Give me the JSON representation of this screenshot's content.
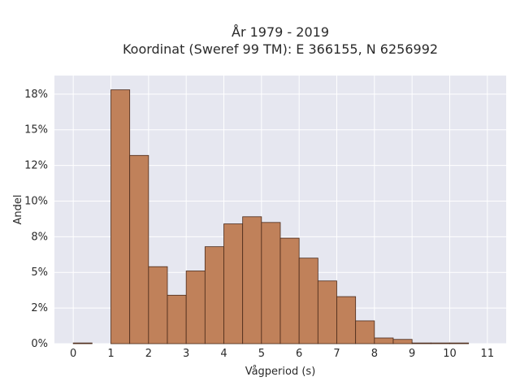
{
  "chart_data": {
    "type": "bar",
    "title_lines": [
      "År 1979 - 2019",
      "Koordinat (Sweref 99 TM): E 366155, N 6256992"
    ],
    "xlabel": "Vågperiod (s)",
    "ylabel": "Andel",
    "bin_width": 0.5,
    "bins": [
      {
        "x0": 0.0,
        "value": 0.05
      },
      {
        "x0": 0.5,
        "value": 0.0
      },
      {
        "x0": 1.0,
        "value": 17.8
      },
      {
        "x0": 1.5,
        "value": 13.2
      },
      {
        "x0": 2.0,
        "value": 5.4
      },
      {
        "x0": 2.5,
        "value": 3.4
      },
      {
        "x0": 3.0,
        "value": 5.1
      },
      {
        "x0": 3.5,
        "value": 6.8
      },
      {
        "x0": 4.0,
        "value": 8.4
      },
      {
        "x0": 4.5,
        "value": 8.9
      },
      {
        "x0": 5.0,
        "value": 8.5
      },
      {
        "x0": 5.5,
        "value": 7.4
      },
      {
        "x0": 6.0,
        "value": 6.0
      },
      {
        "x0": 6.5,
        "value": 4.4
      },
      {
        "x0": 7.0,
        "value": 3.3
      },
      {
        "x0": 7.5,
        "value": 1.6
      },
      {
        "x0": 8.0,
        "value": 0.4
      },
      {
        "x0": 8.5,
        "value": 0.3
      },
      {
        "x0": 9.0,
        "value": 0.05
      },
      {
        "x0": 9.5,
        "value": 0.05
      },
      {
        "x0": 10.0,
        "value": 0.05
      }
    ],
    "xlim": [
      -0.5,
      11.5
    ],
    "ylim": [
      0,
      18.8
    ],
    "xticks": [
      0,
      1,
      2,
      3,
      4,
      5,
      6,
      7,
      8,
      9,
      10,
      11
    ],
    "xtick_labels": [
      "0",
      "1",
      "2",
      "3",
      "4",
      "5",
      "6",
      "7",
      "8",
      "9",
      "10",
      "11"
    ],
    "yticks": [
      0,
      2.5,
      5,
      7.5,
      10,
      12.5,
      15,
      17.5
    ],
    "ytick_labels": [
      "0%",
      "2%",
      "5%",
      "8%",
      "10%",
      "12%",
      "15%",
      "18%"
    ],
    "grid": true,
    "colors": {
      "bar_fill": "#c0815a",
      "bar_edge": "#4a2a1a",
      "plot_bg": "#e6e7f0",
      "grid": "#ffffff"
    }
  }
}
